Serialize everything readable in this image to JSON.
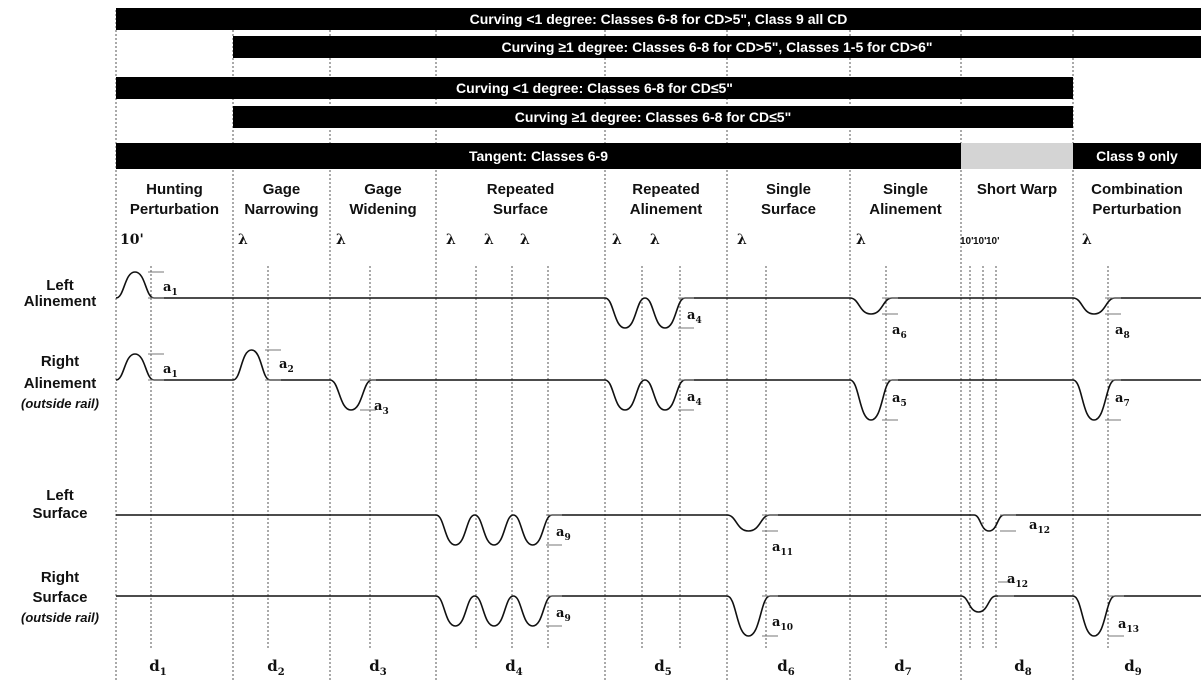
{
  "bars": [
    {
      "id": "cd-gt5-lt1",
      "text": "Curving <1 degree: Classes 6-8 for CD>5\", Class 9 all CD",
      "fill": "#000000"
    },
    {
      "id": "cd-gt5-ge1",
      "text": "Curving ≥1 degree: Classes 6-8 for CD>5\", Classes 1-5 for CD>6\"",
      "fill": "#000000"
    },
    {
      "id": "cd-le5-lt1",
      "text": "Curving <1 degree: Classes 6-8 for CD≤5\"",
      "fill": "#000000"
    },
    {
      "id": "cd-le5-ge1",
      "text": "Curving ≥1 degree: Classes 6-8 for CD≤5\"",
      "fill": "#000000"
    },
    {
      "id": "tangent",
      "text": "Tangent: Classes 6-9",
      "fill": "#000000"
    },
    {
      "id": "short-warp-shade",
      "text": "",
      "fill": "#d4d4d4"
    },
    {
      "id": "class9",
      "text": "Class 9 only",
      "fill": "#000000"
    }
  ],
  "columns": [
    {
      "line1": "Hunting",
      "line2": "Perturbation",
      "markers": [
        "10'"
      ],
      "distance": "d",
      "distance_sub": "1"
    },
    {
      "line1": "Gage",
      "line2": "Narrowing",
      "markers": [
        "λ"
      ],
      "distance": "d",
      "distance_sub": "2"
    },
    {
      "line1": "Gage",
      "line2": "Widening",
      "markers": [
        "λ"
      ],
      "distance": "d",
      "distance_sub": "3"
    },
    {
      "line1": "Repeated",
      "line2": "Surface",
      "markers": [
        "λ",
        "λ",
        "λ"
      ],
      "distance": "d",
      "distance_sub": "4"
    },
    {
      "line1": "Repeated",
      "line2": "Alinement",
      "markers": [
        "λ",
        "λ"
      ],
      "distance": "d",
      "distance_sub": "5"
    },
    {
      "line1": "Single",
      "line2": "Surface",
      "markers": [
        "λ"
      ],
      "distance": "d",
      "distance_sub": "6"
    },
    {
      "line1": "Single",
      "line2": "Alinement",
      "markers": [
        "λ"
      ],
      "distance": "d",
      "distance_sub": "7"
    },
    {
      "line1": "Short Warp",
      "line2": "",
      "markers": [
        "10'",
        "10'",
        "10'"
      ],
      "distance": "d",
      "distance_sub": "8"
    },
    {
      "line1": "Combination",
      "line2": "Perturbation",
      "markers": [
        "λ"
      ],
      "distance": "d",
      "distance_sub": "9"
    }
  ],
  "rows": [
    {
      "id": "left-alinement",
      "line1": "Left",
      "line2": "Alinement",
      "note": ""
    },
    {
      "id": "right-alinement",
      "line1": "Right",
      "line2": "Alinement",
      "note": "(outside rail)"
    },
    {
      "id": "left-surface",
      "line1": "Left",
      "line2": "Surface",
      "note": ""
    },
    {
      "id": "right-surface",
      "line1": "Right",
      "line2": "Surface",
      "note": "(outside rail)"
    }
  ],
  "amplitudes": [
    {
      "row": 0,
      "label": "a",
      "sub": "1"
    },
    {
      "row": 1,
      "label": "a",
      "sub": "1"
    },
    {
      "row": 1,
      "label": "a",
      "sub": "2"
    },
    {
      "row": 1,
      "label": "a",
      "sub": "3"
    },
    {
      "row": 0,
      "label": "a",
      "sub": "4"
    },
    {
      "row": 1,
      "label": "a",
      "sub": "4"
    },
    {
      "row": 0,
      "label": "a",
      "sub": "6"
    },
    {
      "row": 1,
      "label": "a",
      "sub": "5"
    },
    {
      "row": 0,
      "label": "a",
      "sub": "8"
    },
    {
      "row": 1,
      "label": "a",
      "sub": "7"
    },
    {
      "row": 2,
      "label": "a",
      "sub": "9"
    },
    {
      "row": 3,
      "label": "a",
      "sub": "9"
    },
    {
      "row": 2,
      "label": "a",
      "sub": "11"
    },
    {
      "row": 3,
      "label": "a",
      "sub": "10"
    },
    {
      "row": 2,
      "label": "a",
      "sub": "12"
    },
    {
      "row": 3,
      "label": "a",
      "sub": "12"
    },
    {
      "row": 3,
      "label": "a",
      "sub": "13"
    }
  ]
}
